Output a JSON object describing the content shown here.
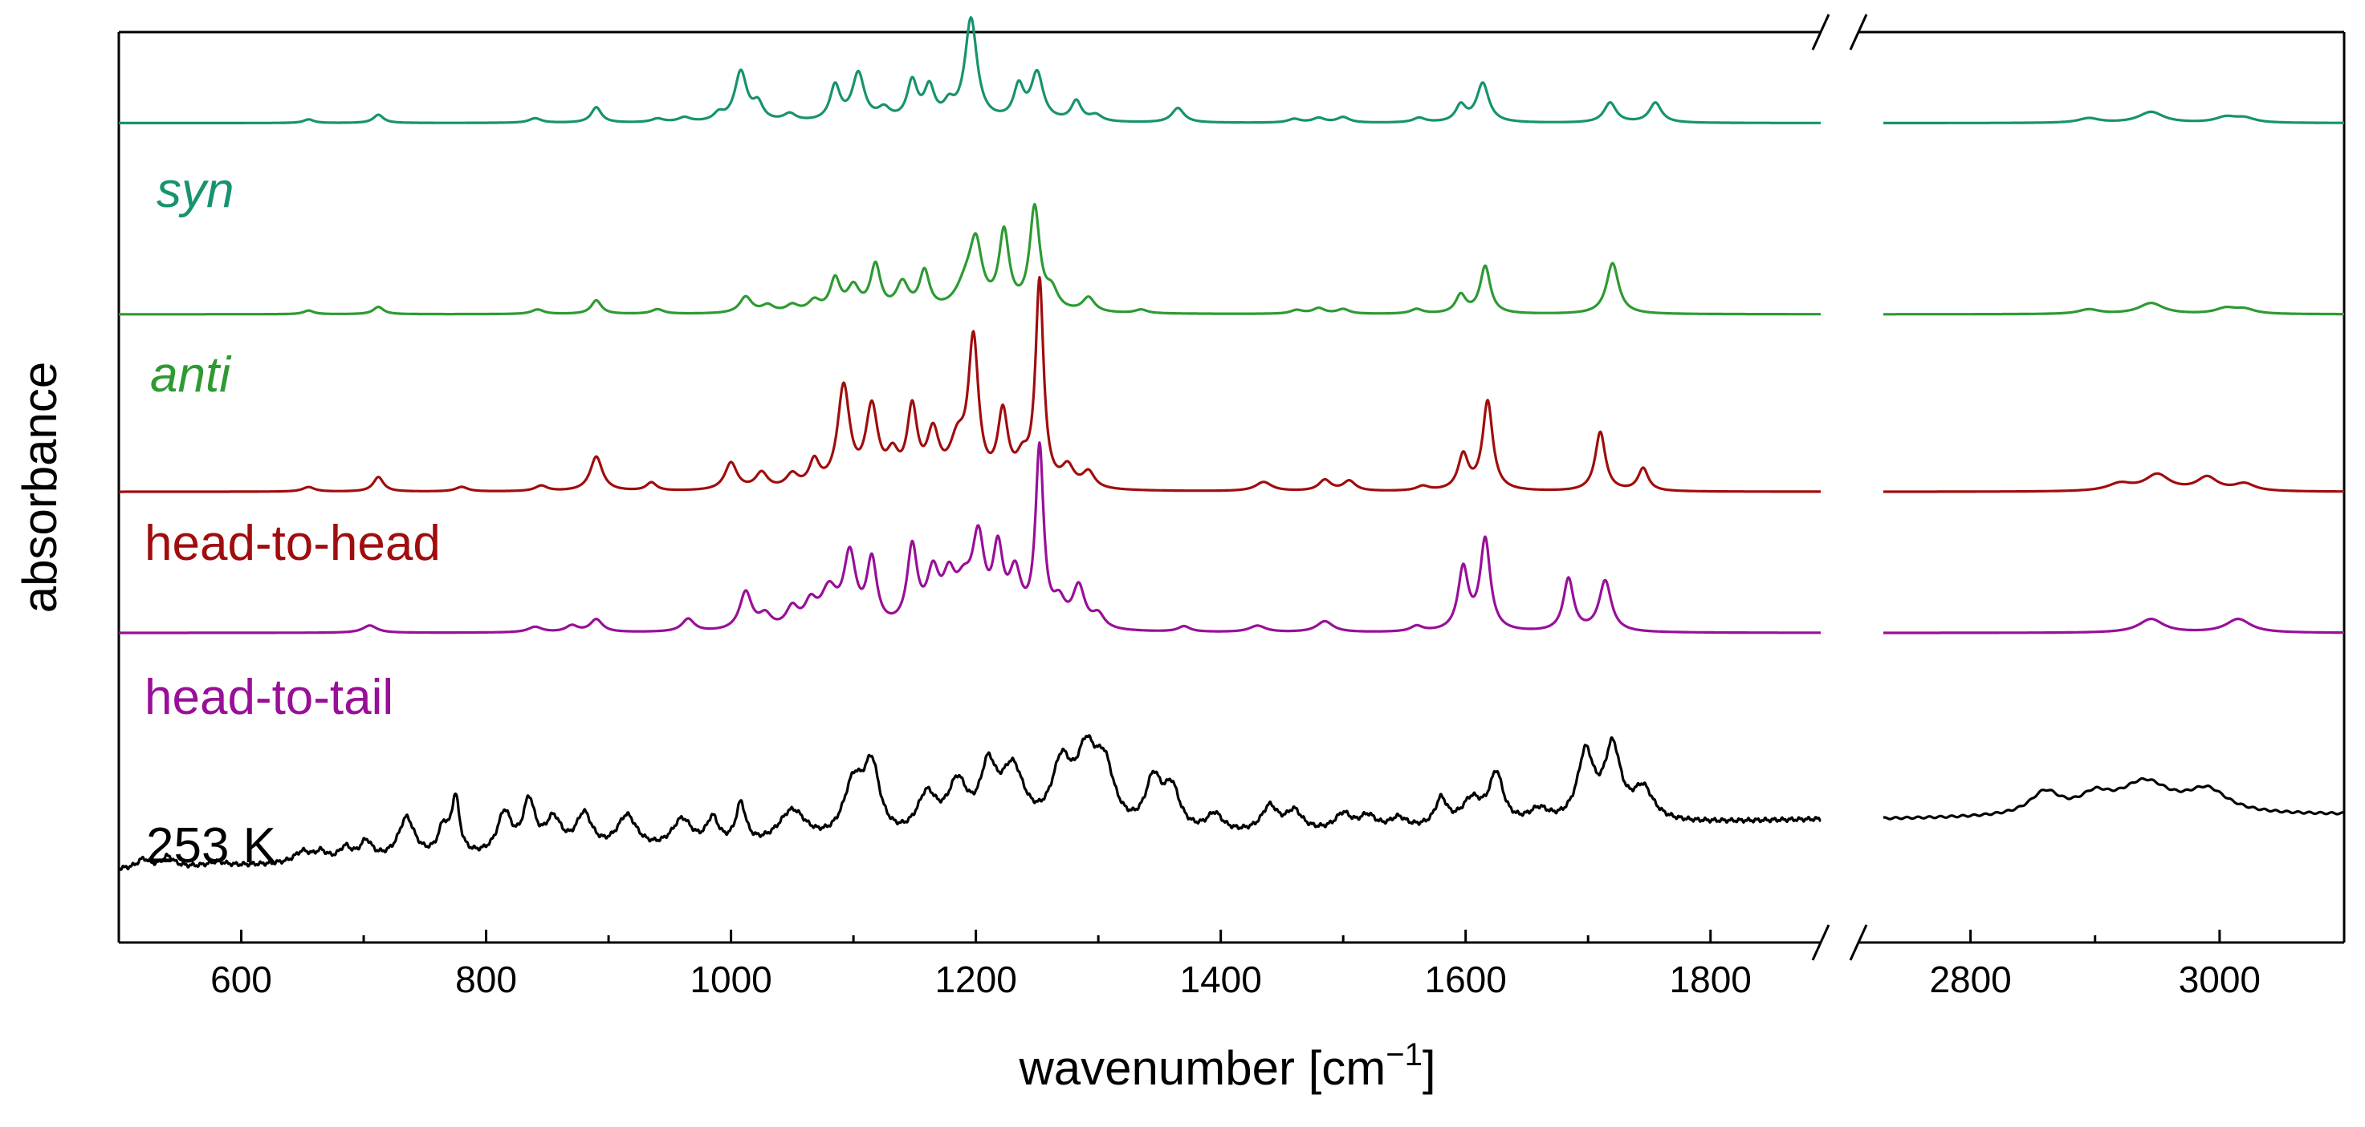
{
  "chart_data": {
    "type": "line",
    "title": "",
    "xlabel": "wavenumber [cm",
    "xlabel_sup": "−1",
    "xlabel_close": "]",
    "ylabel": "absorbance",
    "x_range": [
      500,
      3100
    ],
    "x_break": [
      1890,
      2710
    ],
    "y_axis": "stacked, no tick labels (offset traces, arbitrary units)",
    "ylim": [
      0,
      10
    ],
    "x_ticks": [
      600,
      800,
      1000,
      1200,
      1400,
      1600,
      1800,
      2800,
      3000
    ],
    "x_tick_labels": [
      "600",
      "800",
      "1000",
      "1200",
      "1400",
      "1600",
      "1800",
      "2800",
      "3000"
    ],
    "grid": false,
    "legend": "inline labels at left of each trace",
    "series": [
      {
        "name": "syn",
        "italic": true,
        "color": "#16936f",
        "baseline": 9.0,
        "peaks": [
          [
            655,
            0.04,
            5
          ],
          [
            712,
            0.09,
            5
          ],
          [
            840,
            0.05,
            6
          ],
          [
            890,
            0.17,
            5
          ],
          [
            940,
            0.04,
            6
          ],
          [
            962,
            0.05,
            6
          ],
          [
            990,
            0.08,
            5
          ],
          [
            1008,
            0.55,
            6
          ],
          [
            1022,
            0.18,
            5
          ],
          [
            1048,
            0.08,
            6
          ],
          [
            1085,
            0.38,
            5
          ],
          [
            1104,
            0.52,
            6
          ],
          [
            1125,
            0.12,
            6
          ],
          [
            1148,
            0.42,
            5
          ],
          [
            1162,
            0.35,
            5
          ],
          [
            1178,
            0.15,
            5
          ],
          [
            1196,
            1.12,
            6
          ],
          [
            1235,
            0.36,
            5
          ],
          [
            1250,
            0.52,
            6
          ],
          [
            1282,
            0.22,
            5
          ],
          [
            1298,
            0.07,
            6
          ],
          [
            1365,
            0.16,
            6
          ],
          [
            1460,
            0.04,
            6
          ],
          [
            1480,
            0.05,
            6
          ],
          [
            1500,
            0.06,
            6
          ],
          [
            1562,
            0.05,
            6
          ],
          [
            1596,
            0.18,
            5
          ],
          [
            1614,
            0.43,
            6
          ],
          [
            1718,
            0.22,
            6
          ],
          [
            1755,
            0.22,
            6
          ],
          [
            2895,
            0.05,
            10
          ],
          [
            2945,
            0.12,
            12
          ],
          [
            3005,
            0.06,
            10
          ],
          [
            3020,
            0.05,
            10
          ]
        ]
      },
      {
        "name": "anti",
        "italic": true,
        "color": "#2e9a32",
        "baseline": 6.9,
        "peaks": [
          [
            655,
            0.04,
            5
          ],
          [
            712,
            0.08,
            5
          ],
          [
            842,
            0.05,
            6
          ],
          [
            890,
            0.15,
            5
          ],
          [
            940,
            0.05,
            6
          ],
          [
            1012,
            0.18,
            6
          ],
          [
            1030,
            0.08,
            6
          ],
          [
            1050,
            0.08,
            6
          ],
          [
            1068,
            0.12,
            6
          ],
          [
            1085,
            0.35,
            5
          ],
          [
            1100,
            0.26,
            6
          ],
          [
            1118,
            0.5,
            5
          ],
          [
            1140,
            0.3,
            6
          ],
          [
            1158,
            0.42,
            5
          ],
          [
            1192,
            0.28,
            10
          ],
          [
            1200,
            0.65,
            6
          ],
          [
            1223,
            0.84,
            5
          ],
          [
            1248,
            1.12,
            5
          ],
          [
            1262,
            0.2,
            6
          ],
          [
            1292,
            0.16,
            6
          ],
          [
            1335,
            0.04,
            6
          ],
          [
            1462,
            0.04,
            6
          ],
          [
            1480,
            0.06,
            6
          ],
          [
            1500,
            0.05,
            6
          ],
          [
            1560,
            0.05,
            6
          ],
          [
            1596,
            0.2,
            5
          ],
          [
            1616,
            0.52,
            5
          ],
          [
            1720,
            0.56,
            6
          ],
          [
            2895,
            0.05,
            10
          ],
          [
            2945,
            0.12,
            12
          ],
          [
            3005,
            0.06,
            10
          ],
          [
            3020,
            0.05,
            10
          ]
        ]
      },
      {
        "name": "head-to-head",
        "italic": false,
        "color": "#a00d0d",
        "baseline": 4.95,
        "peaks": [
          [
            655,
            0.05,
            6
          ],
          [
            712,
            0.16,
            5
          ],
          [
            780,
            0.05,
            6
          ],
          [
            845,
            0.06,
            6
          ],
          [
            890,
            0.38,
            6
          ],
          [
            935,
            0.09,
            5
          ],
          [
            1000,
            0.3,
            6
          ],
          [
            1025,
            0.18,
            6
          ],
          [
            1050,
            0.15,
            6
          ],
          [
            1068,
            0.28,
            5
          ],
          [
            1092,
            1.1,
            6
          ],
          [
            1115,
            0.85,
            6
          ],
          [
            1132,
            0.3,
            6
          ],
          [
            1148,
            0.82,
            5
          ],
          [
            1165,
            0.55,
            6
          ],
          [
            1185,
            0.45,
            8
          ],
          [
            1198,
            1.55,
            5
          ],
          [
            1222,
            0.78,
            5
          ],
          [
            1238,
            0.25,
            6
          ],
          [
            1252,
            2.25,
            4
          ],
          [
            1275,
            0.22,
            6
          ],
          [
            1292,
            0.18,
            6
          ],
          [
            1435,
            0.1,
            8
          ],
          [
            1485,
            0.12,
            6
          ],
          [
            1505,
            0.11,
            6
          ],
          [
            1565,
            0.05,
            6
          ],
          [
            1598,
            0.38,
            5
          ],
          [
            1618,
            0.98,
            5
          ],
          [
            1710,
            0.65,
            5
          ],
          [
            1745,
            0.25,
            5
          ],
          [
            2920,
            0.08,
            12
          ],
          [
            2950,
            0.18,
            12
          ],
          [
            2990,
            0.15,
            10
          ],
          [
            3020,
            0.08,
            10
          ]
        ]
      },
      {
        "name": "head-to-tail",
        "italic": false,
        "color": "#990f99",
        "baseline": 3.4,
        "peaks": [
          [
            705,
            0.08,
            7
          ],
          [
            840,
            0.06,
            7
          ],
          [
            870,
            0.07,
            6
          ],
          [
            890,
            0.14,
            6
          ],
          [
            965,
            0.14,
            6
          ],
          [
            1012,
            0.42,
            6
          ],
          [
            1028,
            0.15,
            6
          ],
          [
            1050,
            0.22,
            6
          ],
          [
            1065,
            0.25,
            6
          ],
          [
            1080,
            0.4,
            8
          ],
          [
            1097,
            0.78,
            6
          ],
          [
            1115,
            0.72,
            5
          ],
          [
            1148,
            0.86,
            5
          ],
          [
            1165,
            0.55,
            6
          ],
          [
            1178,
            0.45,
            6
          ],
          [
            1190,
            0.38,
            8
          ],
          [
            1202,
            0.9,
            6
          ],
          [
            1218,
            0.78,
            5
          ],
          [
            1232,
            0.55,
            6
          ],
          [
            1252,
            1.95,
            4
          ],
          [
            1268,
            0.25,
            6
          ],
          [
            1284,
            0.45,
            6
          ],
          [
            1300,
            0.15,
            6
          ],
          [
            1370,
            0.06,
            6
          ],
          [
            1430,
            0.07,
            8
          ],
          [
            1485,
            0.12,
            8
          ],
          [
            1560,
            0.06,
            6
          ],
          [
            1598,
            0.68,
            5
          ],
          [
            1616,
            1.0,
            5
          ],
          [
            1684,
            0.58,
            5
          ],
          [
            1714,
            0.56,
            6
          ],
          [
            2945,
            0.15,
            12
          ],
          [
            3015,
            0.15,
            12
          ]
        ]
      },
      {
        "name": "253 K",
        "italic": false,
        "color": "#000000",
        "baseline": 0.9,
        "peaks": [
          [
            520,
            0.1,
            6
          ],
          [
            540,
            0.12,
            6
          ],
          [
            580,
            0.05,
            8
          ],
          [
            650,
            0.12,
            8
          ],
          [
            665,
            0.1,
            6
          ],
          [
            685,
            0.14,
            6
          ],
          [
            702,
            0.2,
            6
          ],
          [
            735,
            0.45,
            8
          ],
          [
            765,
            0.3,
            5
          ],
          [
            775,
            0.62,
            4
          ],
          [
            815,
            0.45,
            7
          ],
          [
            835,
            0.55,
            6
          ],
          [
            855,
            0.35,
            8
          ],
          [
            880,
            0.4,
            8
          ],
          [
            915,
            0.38,
            10
          ],
          [
            960,
            0.32,
            10
          ],
          [
            985,
            0.3,
            6
          ],
          [
            1008,
            0.45,
            5
          ],
          [
            1050,
            0.38,
            14
          ],
          [
            1100,
            0.6,
            10
          ],
          [
            1115,
            0.75,
            8
          ],
          [
            1160,
            0.45,
            10
          ],
          [
            1185,
            0.55,
            10
          ],
          [
            1210,
            0.65,
            8
          ],
          [
            1230,
            0.7,
            12
          ],
          [
            1270,
            0.7,
            10
          ],
          [
            1290,
            0.75,
            10
          ],
          [
            1305,
            0.65,
            10
          ],
          [
            1345,
            0.55,
            8
          ],
          [
            1360,
            0.45,
            8
          ],
          [
            1395,
            0.2,
            8
          ],
          [
            1440,
            0.28,
            8
          ],
          [
            1460,
            0.22,
            8
          ],
          [
            1500,
            0.18,
            8
          ],
          [
            1520,
            0.15,
            8
          ],
          [
            1545,
            0.12,
            8
          ],
          [
            1580,
            0.3,
            6
          ],
          [
            1605,
            0.28,
            10
          ],
          [
            1625,
            0.55,
            7
          ],
          [
            1660,
            0.15,
            10
          ],
          [
            1698,
            0.75,
            8
          ],
          [
            1720,
            0.8,
            8
          ],
          [
            1745,
            0.35,
            10
          ],
          [
            2860,
            0.25,
            15
          ],
          [
            2900,
            0.18,
            15
          ],
          [
            2940,
            0.35,
            25
          ],
          [
            2990,
            0.25,
            20
          ]
        ]
      }
    ]
  }
}
